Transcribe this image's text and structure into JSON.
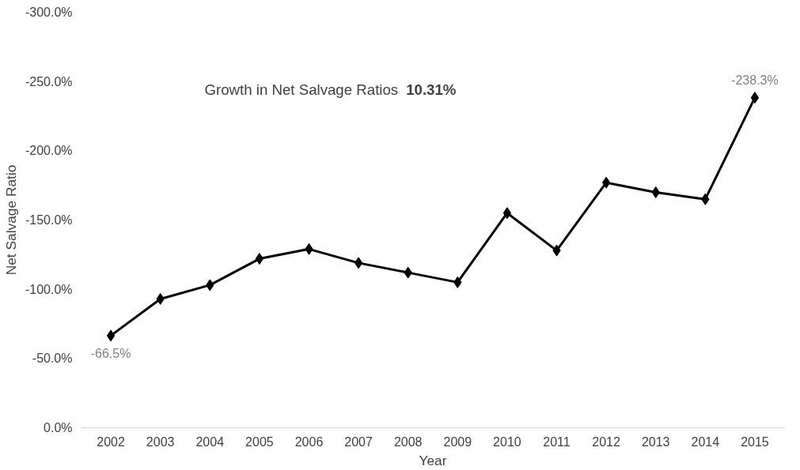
{
  "chart_data": {
    "type": "line",
    "xlabel": "Year",
    "ylabel": "Net Salvage Ratio",
    "categories": [
      "2002",
      "2003",
      "2004",
      "2005",
      "2006",
      "2007",
      "2008",
      "2009",
      "2010",
      "2011",
      "2012",
      "2013",
      "2014",
      "2015"
    ],
    "series": [
      {
        "color": "#000000",
        "values": [
          -66.5,
          -93,
          -103,
          -122,
          -129,
          -119,
          -112,
          -105,
          -155,
          -128,
          -177,
          -170,
          -165,
          -238.3
        ],
        "value_labels": [
          "-66.5%",
          null,
          null,
          null,
          null,
          null,
          null,
          null,
          null,
          null,
          null,
          null,
          null,
          "-238.3%"
        ]
      }
    ],
    "ylim": [
      0,
      -300
    ],
    "yticks": [
      {
        "value": 0,
        "label": "0.0%"
      },
      {
        "value": -50,
        "label": "-50.0%"
      },
      {
        "value": -100,
        "label": "-100.0%"
      },
      {
        "value": -150,
        "label": "-150.0%"
      },
      {
        "value": -200,
        "label": "-200.0%"
      },
      {
        "value": -250,
        "label": "-250.0%"
      },
      {
        "value": -300,
        "label": "-300.0%"
      }
    ],
    "annotations": [
      "Growth in Net Salvage Ratios",
      "10.31%"
    ],
    "marker": "diamond",
    "line_style": "solid",
    "grid": false
  }
}
